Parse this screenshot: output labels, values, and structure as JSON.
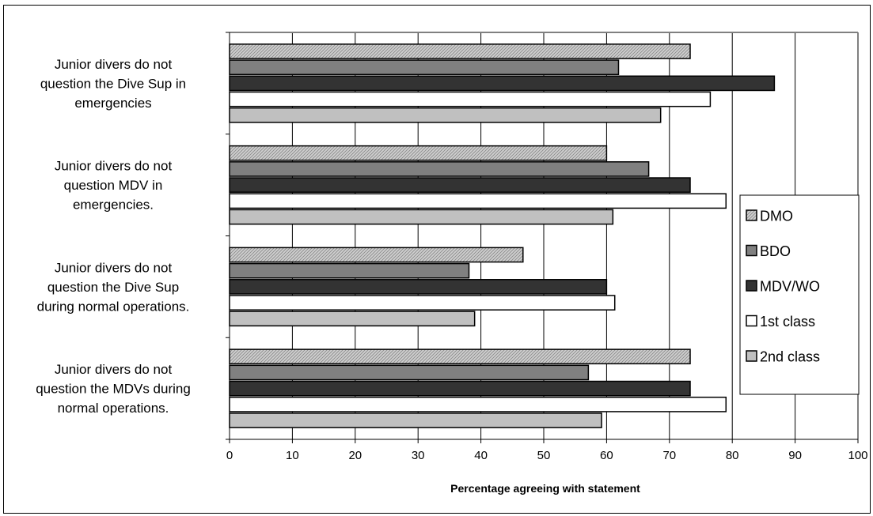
{
  "chart_data": {
    "type": "bar",
    "orientation": "horizontal",
    "categories": [
      "Junior divers do not question the Dive Sup in emergencies",
      "Junior divers do not question MDV in emergencies.",
      "Junior divers do not question the Dive Sup during normal operations.",
      "Junior divers do not question the MDVs during normal operations."
    ],
    "category_lines": [
      [
        "Junior divers do not",
        "question the Dive Sup in",
        "emergencies"
      ],
      [
        "Junior divers do not",
        "question MDV in",
        "emergencies."
      ],
      [
        "Junior divers do not",
        "question the Dive Sup",
        "during normal operations."
      ],
      [
        "Junior divers do not",
        "question the MDVs during",
        "normal operations."
      ]
    ],
    "series": [
      {
        "name": "DMO",
        "values": [
          73.3,
          60,
          46.7,
          73.3
        ],
        "fill": "#c8c8c8",
        "pattern": "diagonal"
      },
      {
        "name": "BDO",
        "values": [
          61.9,
          66.7,
          38.1,
          57.1
        ],
        "fill": "#808080"
      },
      {
        "name": "MDV/WO",
        "values": [
          86.7,
          73.3,
          60,
          73.3
        ],
        "fill": "#333333"
      },
      {
        "name": "1st class",
        "values": [
          76.5,
          79,
          61.3,
          79
        ],
        "fill": "#ffffff"
      },
      {
        "name": "2nd class",
        "values": [
          68.6,
          61,
          39,
          59.2
        ],
        "fill": "#c0c0c0"
      }
    ],
    "xlabel": "Percentage agreeing with statement",
    "xlim": [
      0,
      100
    ],
    "xticks": [
      "0",
      "10",
      "20",
      "30",
      "40",
      "50",
      "60",
      "70",
      "80",
      "90",
      "100"
    ],
    "grid": "vertical major",
    "legend": "right"
  }
}
